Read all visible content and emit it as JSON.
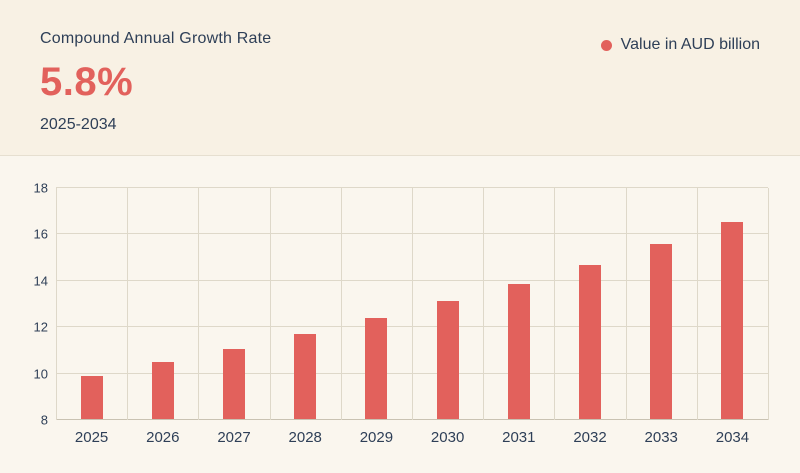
{
  "header": {
    "title": "Compound Annual Growth Rate",
    "cagr_value": "5.8%",
    "period": "2025-2034",
    "legend_label": "Value in AUD billion"
  },
  "chart_data": {
    "type": "bar",
    "title": "Compound Annual Growth Rate 5.8% (2025-2034)",
    "categories": [
      "2025",
      "2026",
      "2027",
      "2028",
      "2029",
      "2030",
      "2031",
      "2032",
      "2033",
      "2034"
    ],
    "values": [
      9.85,
      10.45,
      11.0,
      11.65,
      12.35,
      13.1,
      13.8,
      14.65,
      15.55,
      16.5
    ],
    "series_name": "Value in AUD billion",
    "xlabel": "",
    "ylabel": "",
    "ylim": [
      8,
      18
    ],
    "yticks": [
      8,
      10,
      12,
      14,
      16,
      18
    ],
    "grid": true,
    "legend_position": "top-right",
    "bar_color": "#e2615c"
  },
  "colors": {
    "background_top": "#f8f1e4",
    "background_bottom": "#faf6ee",
    "accent": "#e2615c",
    "text": "#2e3f57",
    "grid": "#ded8c9"
  }
}
